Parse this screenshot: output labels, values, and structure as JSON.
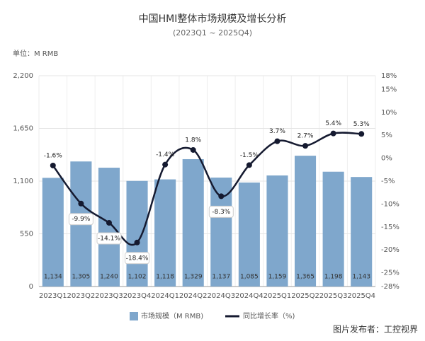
{
  "chart_data": {
    "type": "bar-line",
    "title": "中国HMI整体市场规模及增长分析",
    "subtitle": "(2023Q1 ~ 2025Q4)",
    "unit_label": "单位：M RMB",
    "source": "图片发布者：工控视界",
    "categories": [
      "2023Q1",
      "2023Q2",
      "2023Q3",
      "2023Q4",
      "2024Q1",
      "2024Q2",
      "2024Q3",
      "2024Q4",
      "2025Q1",
      "2025Q2",
      "2025Q3",
      "2025Q4"
    ],
    "series": [
      {
        "name": "市场规模（M RMB)",
        "type": "bar",
        "color": "#7fa7cc",
        "values": [
          1134,
          1305,
          1240,
          1102,
          1118,
          1329,
          1137,
          1085,
          1159,
          1365,
          1198,
          1143
        ],
        "value_labels": [
          "1,134",
          "1,305",
          "1,240",
          "1,102",
          "1,118",
          "1,329",
          "1,137",
          "1,085",
          "1,159",
          "1,365",
          "1,198",
          "1,143"
        ]
      },
      {
        "name": "同比增长率（%)",
        "type": "line",
        "axis": "y2",
        "color": "#151a30",
        "values": [
          -1.6,
          -9.9,
          -14.1,
          -18.4,
          -1.4,
          1.8,
          -8.3,
          -1.5,
          3.7,
          2.7,
          5.4,
          5.3
        ],
        "value_labels": [
          "-1.6%",
          "-9.9%",
          "-14.1%",
          "-18.4%",
          "-1.4%",
          "1.8%",
          "-8.3%",
          "-1.5%",
          "3.7%",
          "2.7%",
          "5.4%",
          "5.3%"
        ]
      }
    ],
    "ylim": [
      0,
      2200
    ],
    "yticks": [
      0,
      550,
      {
        "value": 1100,
        "label": "1,100"
      },
      {
        "value": 1650,
        "label": "1,650"
      },
      {
        "value": 2200,
        "label": "2,200"
      }
    ],
    "y2lim": [
      -28,
      18
    ],
    "y2ticks": [
      {
        "value": -28,
        "label": "-28%"
      },
      {
        "value": -25,
        "label": "-25%"
      },
      {
        "value": -20,
        "label": "-20%"
      },
      {
        "value": -15,
        "label": "-15%"
      },
      {
        "value": -10,
        "label": "-10%"
      },
      {
        "value": -5,
        "label": "-5%"
      },
      {
        "value": 0,
        "label": "0%"
      },
      {
        "value": 5,
        "label": "5%"
      },
      {
        "value": 10,
        "label": "10%"
      },
      {
        "value": 15,
        "label": "15%"
      },
      {
        "value": 18,
        "label": "18%"
      }
    ],
    "grid": true
  }
}
